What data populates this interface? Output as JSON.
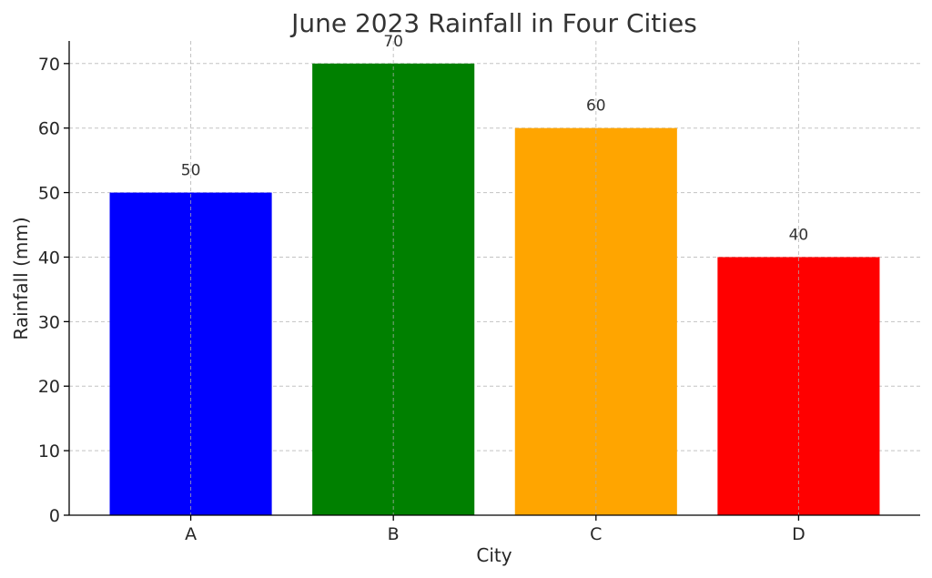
{
  "chart_data": {
    "type": "bar",
    "title": "June 2023 Rainfall in Four Cities",
    "xlabel": "City",
    "ylabel": "Rainfall (mm)",
    "categories": [
      "A",
      "B",
      "C",
      "D"
    ],
    "values": [
      50,
      70,
      60,
      40
    ],
    "data_labels": [
      "50",
      "70",
      "60",
      "40"
    ],
    "colors": [
      "#0000ff",
      "#008000",
      "#ffa500",
      "#ff0000"
    ],
    "ylim": [
      0,
      73.5
    ],
    "yticks": [
      0,
      10,
      20,
      30,
      40,
      50,
      60,
      70
    ],
    "grid": true
  }
}
